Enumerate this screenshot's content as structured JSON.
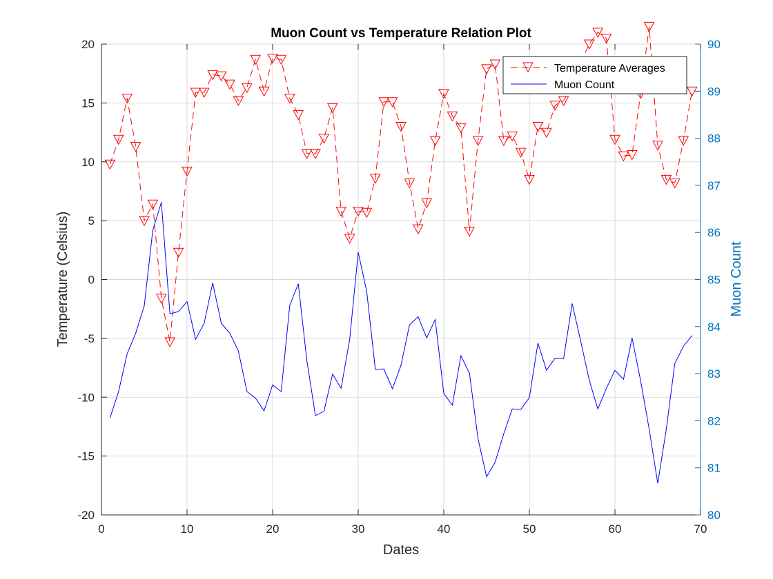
{
  "chart_data": {
    "type": "line",
    "title": "Muon Count vs Temperature Relation Plot",
    "xlabel": "Dates",
    "ylabel_left": "Temperature (Celsius)",
    "ylabel_right": "Muon Count",
    "xlim": [
      0,
      70
    ],
    "ylim_left": [
      -20,
      20
    ],
    "ylim_right": [
      80,
      90
    ],
    "xticks": [
      0,
      10,
      20,
      30,
      40,
      50,
      60,
      70
    ],
    "yticks_left": [
      -20,
      -15,
      -10,
      -5,
      0,
      5,
      10,
      15,
      20
    ],
    "yticks_right": [
      80,
      81,
      82,
      83,
      84,
      85,
      86,
      87,
      88,
      89,
      90
    ],
    "grid": true,
    "legend_position": "top-right",
    "colors": {
      "temperature": "#ff0000",
      "muon": "#0000ff",
      "right_axis": "#0072bd",
      "grid": "#d9d9d9",
      "axis": "#262626"
    },
    "series": [
      {
        "name": "Temperature Averages",
        "axis": "left",
        "style": "dashed-triangle-down",
        "x": [
          1,
          2,
          3,
          4,
          5,
          6,
          7,
          8,
          9,
          10,
          11,
          12,
          13,
          14,
          15,
          16,
          17,
          18,
          19,
          20,
          21,
          22,
          23,
          24,
          25,
          26,
          27,
          28,
          29,
          30,
          31,
          32,
          33,
          34,
          35,
          36,
          37,
          38,
          39,
          40,
          41,
          42,
          43,
          44,
          45,
          46,
          47,
          48,
          49,
          50,
          51,
          52,
          53,
          54,
          55,
          56,
          57,
          58,
          59,
          60,
          61,
          62,
          63,
          64,
          65,
          66,
          67,
          68,
          69
        ],
        "y": [
          9.8,
          11.9,
          15.4,
          11.3,
          5.0,
          6.4,
          -1.6,
          -5.3,
          2.3,
          9.2,
          15.9,
          15.9,
          17.4,
          17.3,
          16.6,
          15.2,
          16.3,
          18.7,
          16.0,
          18.8,
          18.7,
          15.4,
          14.0,
          10.7,
          10.7,
          12.0,
          14.6,
          5.8,
          3.5,
          5.8,
          5.7,
          8.6,
          15.1,
          15.1,
          13.0,
          8.2,
          4.3,
          6.5,
          11.8,
          15.8,
          13.9,
          12.9,
          4.1,
          11.8,
          17.9,
          18.3,
          11.8,
          12.2,
          10.8,
          8.5,
          13.0,
          12.5,
          14.8,
          15.2,
          16.5,
          18.5,
          20.0,
          21.0,
          20.5,
          11.9,
          10.5,
          10.6,
          15.8,
          21.5,
          11.4,
          8.5,
          8.2,
          11.8,
          16.0
        ]
      },
      {
        "name": "Muon Count",
        "axis": "right",
        "style": "solid",
        "x": [
          1,
          2,
          3,
          4,
          5,
          6,
          7,
          8,
          9,
          10,
          11,
          12,
          13,
          14,
          15,
          16,
          17,
          18,
          19,
          20,
          21,
          22,
          23,
          24,
          25,
          26,
          27,
          28,
          29,
          30,
          31,
          32,
          33,
          34,
          35,
          36,
          37,
          38,
          39,
          40,
          41,
          42,
          43,
          44,
          45,
          46,
          47,
          48,
          49,
          50,
          51,
          52,
          53,
          54,
          55,
          56,
          57,
          58,
          59,
          60,
          61,
          62,
          63,
          64,
          65,
          66,
          67,
          68,
          69
        ],
        "y": [
          82.06,
          82.62,
          83.42,
          83.86,
          84.44,
          86.05,
          86.64,
          84.27,
          84.32,
          84.53,
          83.73,
          84.07,
          84.93,
          84.07,
          83.86,
          83.48,
          82.62,
          82.48,
          82.21,
          82.76,
          82.62,
          84.45,
          84.91,
          83.28,
          82.11,
          82.2,
          82.99,
          82.69,
          83.72,
          85.58,
          84.74,
          83.09,
          83.1,
          82.68,
          83.18,
          84.04,
          84.21,
          83.76,
          84.15,
          82.58,
          82.33,
          83.38,
          83.01,
          81.62,
          80.81,
          81.12,
          81.72,
          82.25,
          82.24,
          82.49,
          83.65,
          83.07,
          83.33,
          83.32,
          84.49,
          83.69,
          82.86,
          82.25,
          82.69,
          83.07,
          82.88,
          83.76,
          82.85,
          81.82,
          80.67,
          81.82,
          83.22,
          83.58,
          83.81
        ]
      }
    ]
  }
}
